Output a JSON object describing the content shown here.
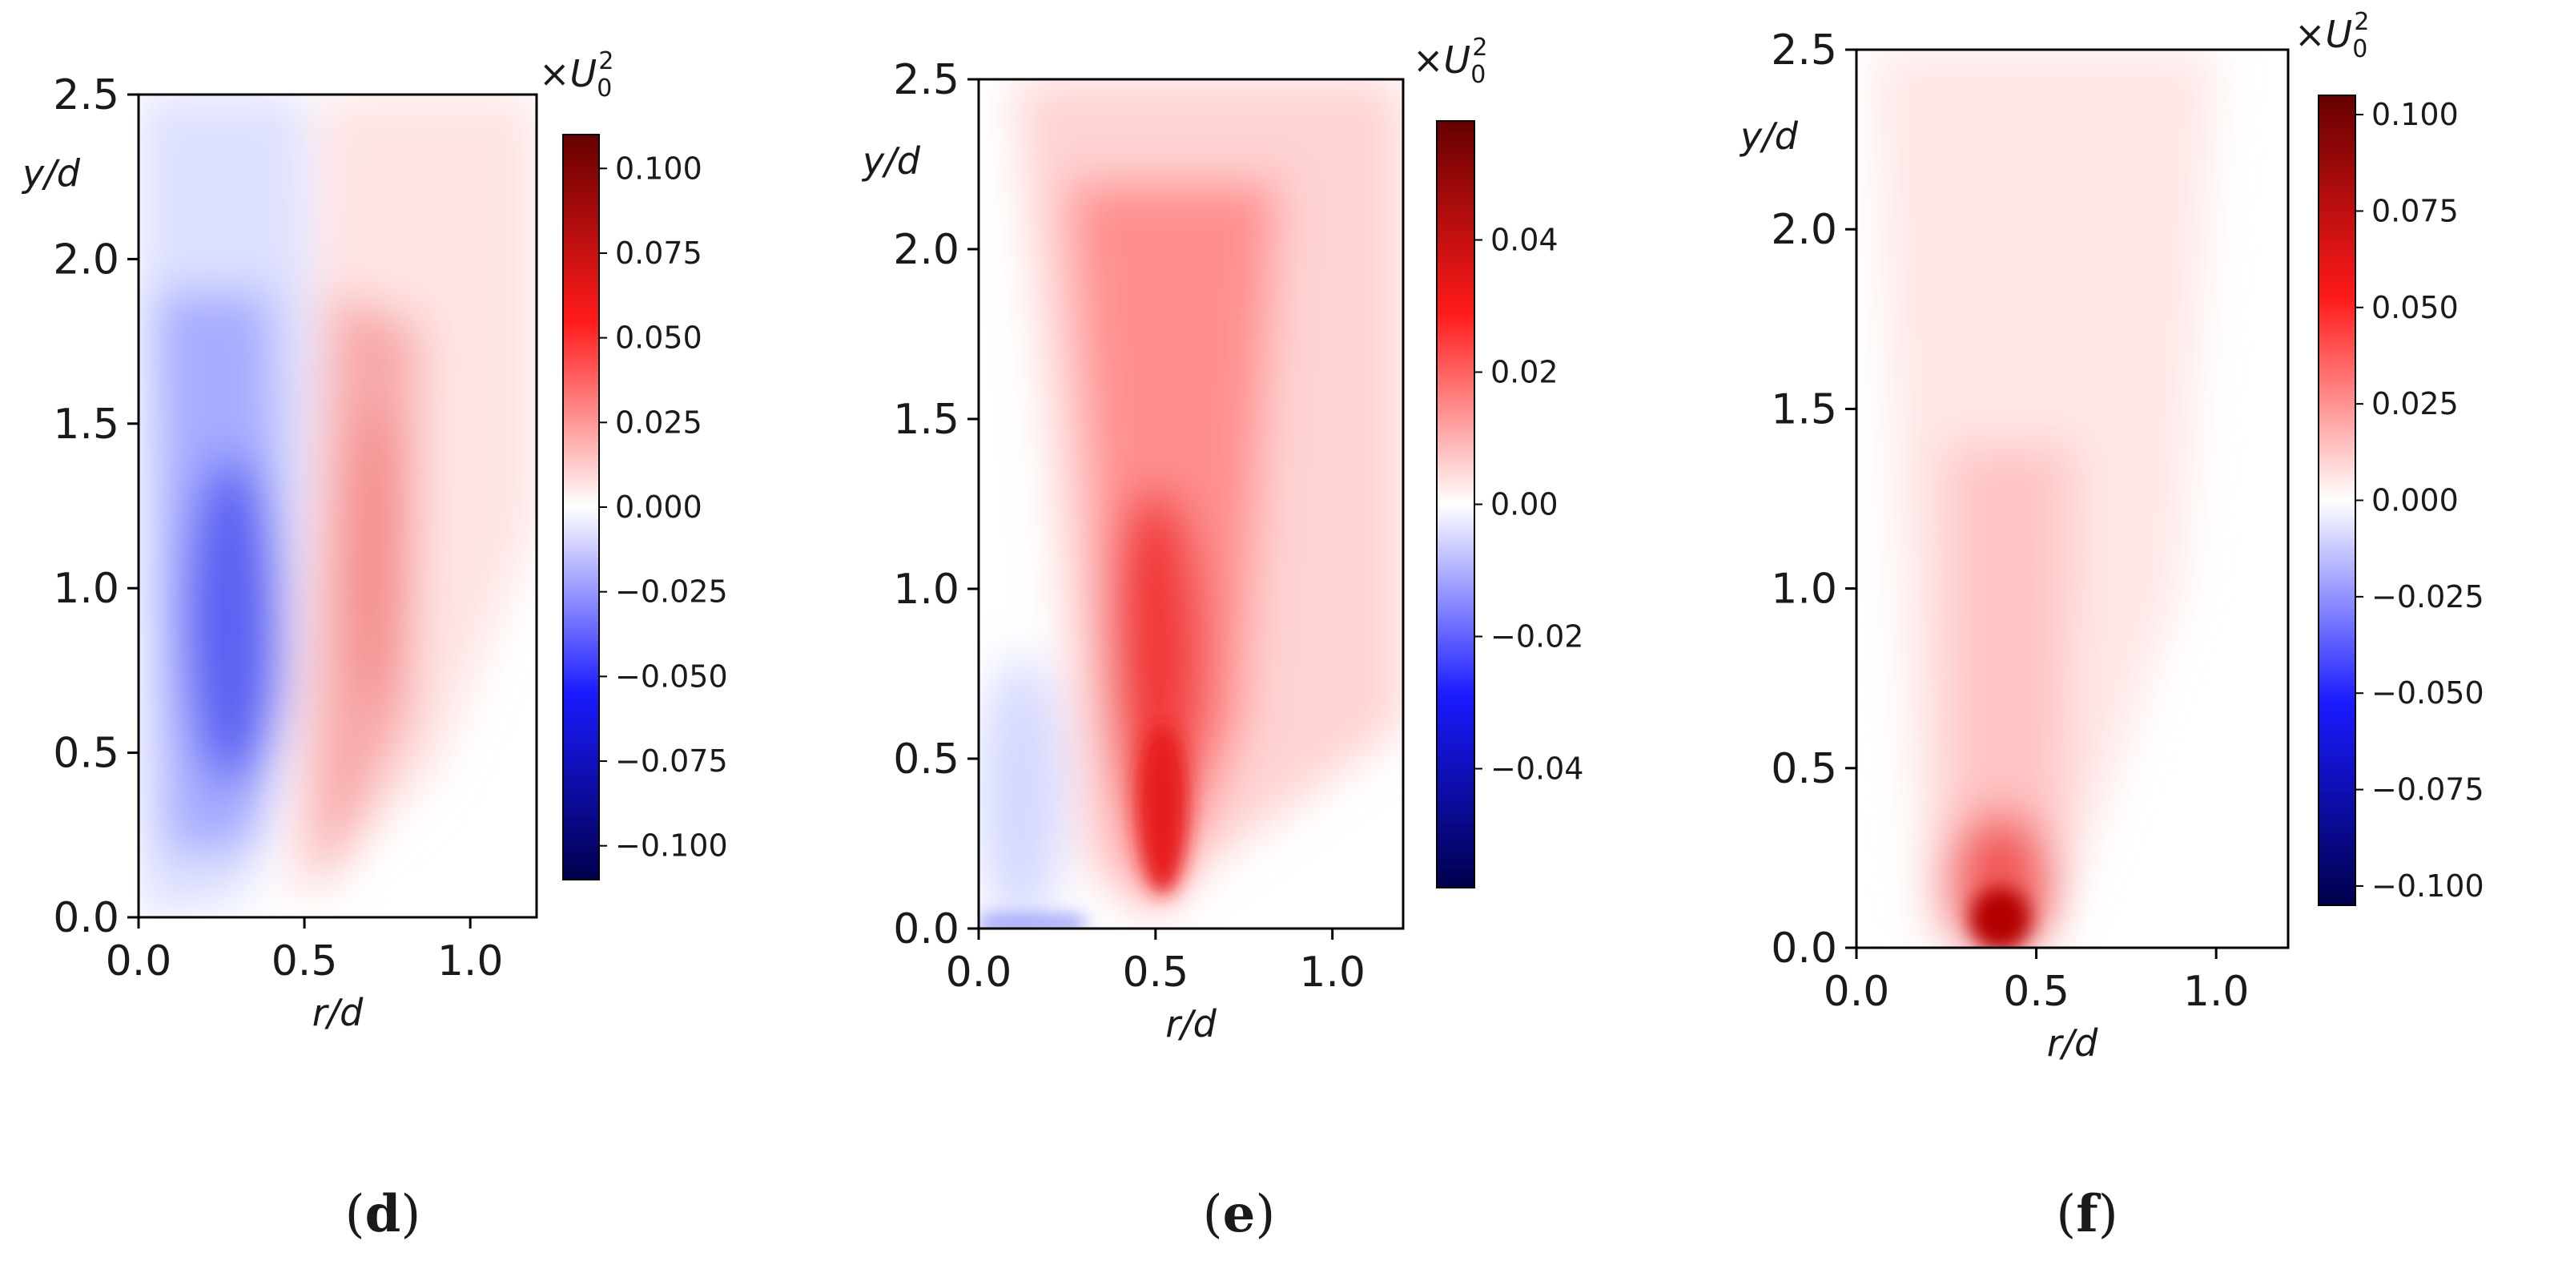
{
  "figure": {
    "x_axis_label": "r/d",
    "y_axis_label": "y/d",
    "colorbar_unit": "×U0²",
    "colormap": {
      "negative": "#00004d",
      "mid_negative": "#1a1aff",
      "zero": "#ffffff",
      "mid_positive": "#ff1a1a",
      "positive": "#660000"
    }
  },
  "chart_data": [
    {
      "type": "heatmap",
      "panel_label": "d",
      "title": "",
      "xlabel": "r/d",
      "ylabel": "y/d",
      "xlim": [
        0.0,
        1.2
      ],
      "ylim": [
        0.0,
        2.5
      ],
      "xticks": [
        "0.0",
        "0.5",
        "1.0"
      ],
      "xtick_values": [
        0.0,
        0.5,
        1.0
      ],
      "yticks": [
        "0.0",
        "0.5",
        "1.0",
        "1.5",
        "2.0",
        "2.5"
      ],
      "ytick_values": [
        0.0,
        0.5,
        1.0,
        1.5,
        2.0,
        2.5
      ],
      "colorbar": {
        "unit": "×U0²",
        "range": [
          -0.11,
          0.11
        ],
        "ticks": [
          "−0.100",
          "−0.075",
          "−0.050",
          "−0.025",
          "0.000",
          "0.025",
          "0.050",
          "0.075",
          "0.100"
        ],
        "tick_values": [
          -0.1,
          -0.075,
          -0.05,
          -0.025,
          0.0,
          0.025,
          0.05,
          0.075,
          0.1
        ]
      },
      "features": [
        {
          "kind": "negative-lobe",
          "r_center": 0.3,
          "y_center": 0.9,
          "peak": -0.05
        },
        {
          "kind": "positive-lobe",
          "r_center": 0.72,
          "y_center": 1.1,
          "peak": 0.025
        }
      ]
    },
    {
      "type": "heatmap",
      "panel_label": "e",
      "title": "",
      "xlabel": "r/d",
      "ylabel": "y/d",
      "xlim": [
        0.0,
        1.2
      ],
      "ylim": [
        0.0,
        2.5
      ],
      "xticks": [
        "0.0",
        "0.5",
        "1.0"
      ],
      "xtick_values": [
        0.0,
        0.5,
        1.0
      ],
      "yticks": [
        "0.0",
        "0.5",
        "1.0",
        "1.5",
        "2.0",
        "2.5"
      ],
      "ytick_values": [
        0.0,
        0.5,
        1.0,
        1.5,
        2.0,
        2.5
      ],
      "colorbar": {
        "unit": "×U0²",
        "range": [
          -0.058,
          0.058
        ],
        "ticks": [
          "−0.04",
          "−0.02",
          "0.00",
          "0.02",
          "0.04"
        ],
        "tick_values": [
          -0.04,
          -0.02,
          0.0,
          0.02,
          0.04
        ]
      },
      "features": [
        {
          "kind": "positive-lobe",
          "r_center": 0.5,
          "y_center": 0.8,
          "peak": 0.04
        },
        {
          "kind": "negative-patch",
          "r_center": 0.12,
          "y_center": 0.4,
          "peak": -0.008
        }
      ]
    },
    {
      "type": "heatmap",
      "panel_label": "f",
      "title": "",
      "xlabel": "r/d",
      "ylabel": "y/d",
      "xlim": [
        0.0,
        1.2
      ],
      "ylim": [
        0.0,
        2.5
      ],
      "xticks": [
        "0.0",
        "0.5",
        "1.0"
      ],
      "xtick_values": [
        0.0,
        0.5,
        1.0
      ],
      "yticks": [
        "0.0",
        "0.5",
        "1.0",
        "1.5",
        "2.0",
        "2.5"
      ],
      "ytick_values": [
        0.0,
        0.5,
        1.0,
        1.5,
        2.0,
        2.5
      ],
      "colorbar": {
        "unit": "×U0²",
        "range": [
          -0.105,
          0.105
        ],
        "ticks": [
          "−0.100",
          "−0.075",
          "−0.050",
          "−0.025",
          "0.000",
          "0.025",
          "0.050",
          "0.075",
          "0.100"
        ],
        "tick_values": [
          -0.1,
          -0.075,
          -0.05,
          -0.025,
          0.0,
          0.025,
          0.05,
          0.075,
          0.1
        ]
      },
      "features": [
        {
          "kind": "positive-hotspot",
          "r_center": 0.4,
          "y_center": 0.08,
          "peak": 0.09
        },
        {
          "kind": "positive-plume",
          "r_center": 0.4,
          "y_center": 1.0,
          "peak": 0.012
        }
      ]
    }
  ]
}
